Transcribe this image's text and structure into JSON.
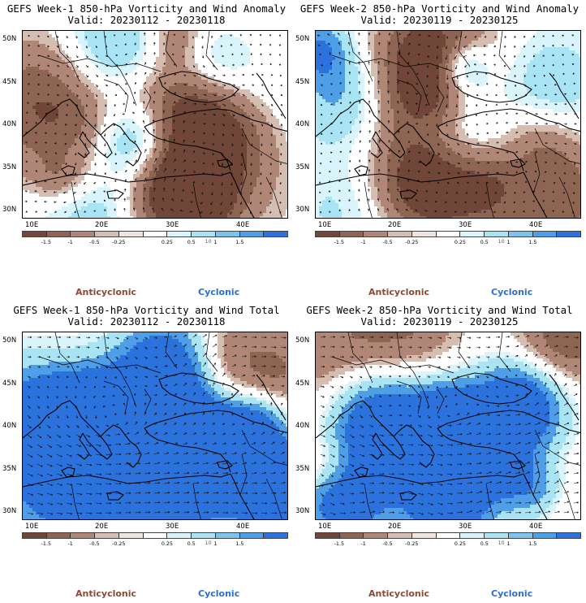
{
  "panels": [
    {
      "title": "GEFS Week-1 850-hPa Vorticity and Wind Anomaly",
      "valid": "Valid: 20230112 - 20230118",
      "kind": "anomaly",
      "seed": 11
    },
    {
      "title": "GEFS Week-2 850-hPa Vorticity and Wind Anomaly",
      "valid": "Valid: 20230119 - 20230125",
      "kind": "anomaly",
      "seed": 23
    },
    {
      "title": "GEFS Week-1 850-hPa Vorticity and Wind Total",
      "valid": "Valid: 20230112 - 20230118",
      "kind": "total",
      "seed": 37
    },
    {
      "title": "GEFS Week-2 850-hPa Vorticity and Wind Total",
      "valid": "Valid: 20230119 - 20230125",
      "kind": "total",
      "seed": 53
    }
  ],
  "lat_labels": [
    "50N",
    "45N",
    "40N",
    "35N",
    "30N"
  ],
  "lon_labels": [
    "10E",
    "20E",
    "30E",
    "40E"
  ],
  "colorbar": {
    "colors": [
      "#6f4637",
      "#8e6453",
      "#b08777",
      "#d6bdb2",
      "#f0e4df",
      "#ffffff",
      "#d9f4fb",
      "#a9e4f4",
      "#7cc3ef",
      "#4f9ee8",
      "#2c72dd"
    ],
    "labels": [
      "-1.5",
      "-1",
      "-0.5",
      "-0.25",
      "0.25",
      "0.5",
      "1",
      "1.5"
    ],
    "cue_label": "10"
  },
  "legend": {
    "anticyclonic": "Anticyclonic",
    "cyclonic": "Cyclonic"
  }
}
